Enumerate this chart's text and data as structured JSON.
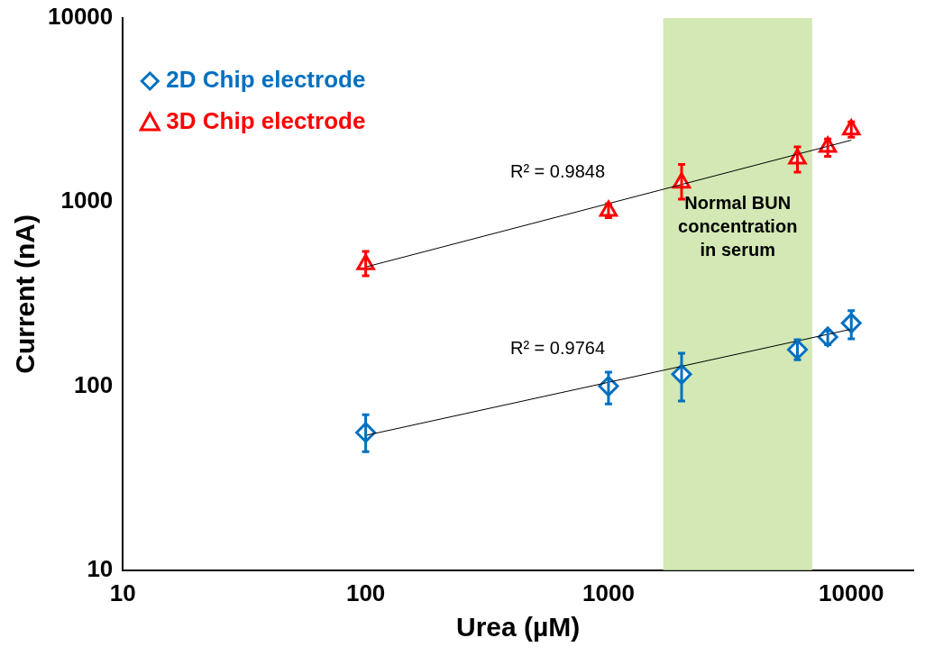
{
  "chart_data": {
    "type": "scatter",
    "xlabel": "Urea (µM)",
    "ylabel": "Current (nA)",
    "log": "xy",
    "xlim": [
      10,
      18000
    ],
    "ylim": [
      10,
      10000
    ],
    "xticks": [
      10,
      100,
      1000,
      10000
    ],
    "yticks": [
      10,
      100,
      1000,
      10000
    ],
    "grid": false,
    "legend": "top left",
    "series": [
      {
        "name": "2D Chip electrode",
        "color": "#0070c0",
        "marker": "diamond",
        "x": [
          100,
          1000,
          2000,
          6000,
          8000,
          10000
        ],
        "values": [
          56,
          100,
          116,
          158,
          185,
          220
        ],
        "errors": [
          [
            44,
            70
          ],
          [
            80,
            119
          ],
          [
            83,
            151
          ],
          [
            139,
            179
          ],
          [
            168,
            200
          ],
          [
            181,
            257
          ]
        ]
      },
      {
        "name": "3D Chip electrode",
        "color": "#ff0000",
        "marker": "triangle",
        "x": [
          100,
          1000,
          2000,
          6000,
          8000,
          10000
        ],
        "values": [
          460,
          897,
          1274,
          1725,
          1995,
          2480
        ],
        "errors": [
          [
            398,
            540
          ],
          [
            824,
            977
          ],
          [
            1037,
            1603
          ],
          [
            1456,
            1995
          ],
          [
            1770,
            2200
          ],
          [
            2250,
            2730
          ]
        ]
      },
      {
        "type": "line",
        "color": "#000000",
        "marker": "none",
        "x": [
          100,
          10000
        ],
        "values": [
          54,
          204
        ]
      },
      {
        "type": "line",
        "color": "#000000",
        "marker": "none",
        "x": [
          100,
          10000
        ],
        "values": [
          444,
          2170
        ]
      }
    ],
    "bands": [
      {
        "axis": "x",
        "from": 1680,
        "to": 6900,
        "label": "Normal BUN concentration in serum",
        "color": "#d3e8b4"
      }
    ],
    "annotations": [
      "R² = 0.9848",
      "R² = 0.9764"
    ]
  }
}
